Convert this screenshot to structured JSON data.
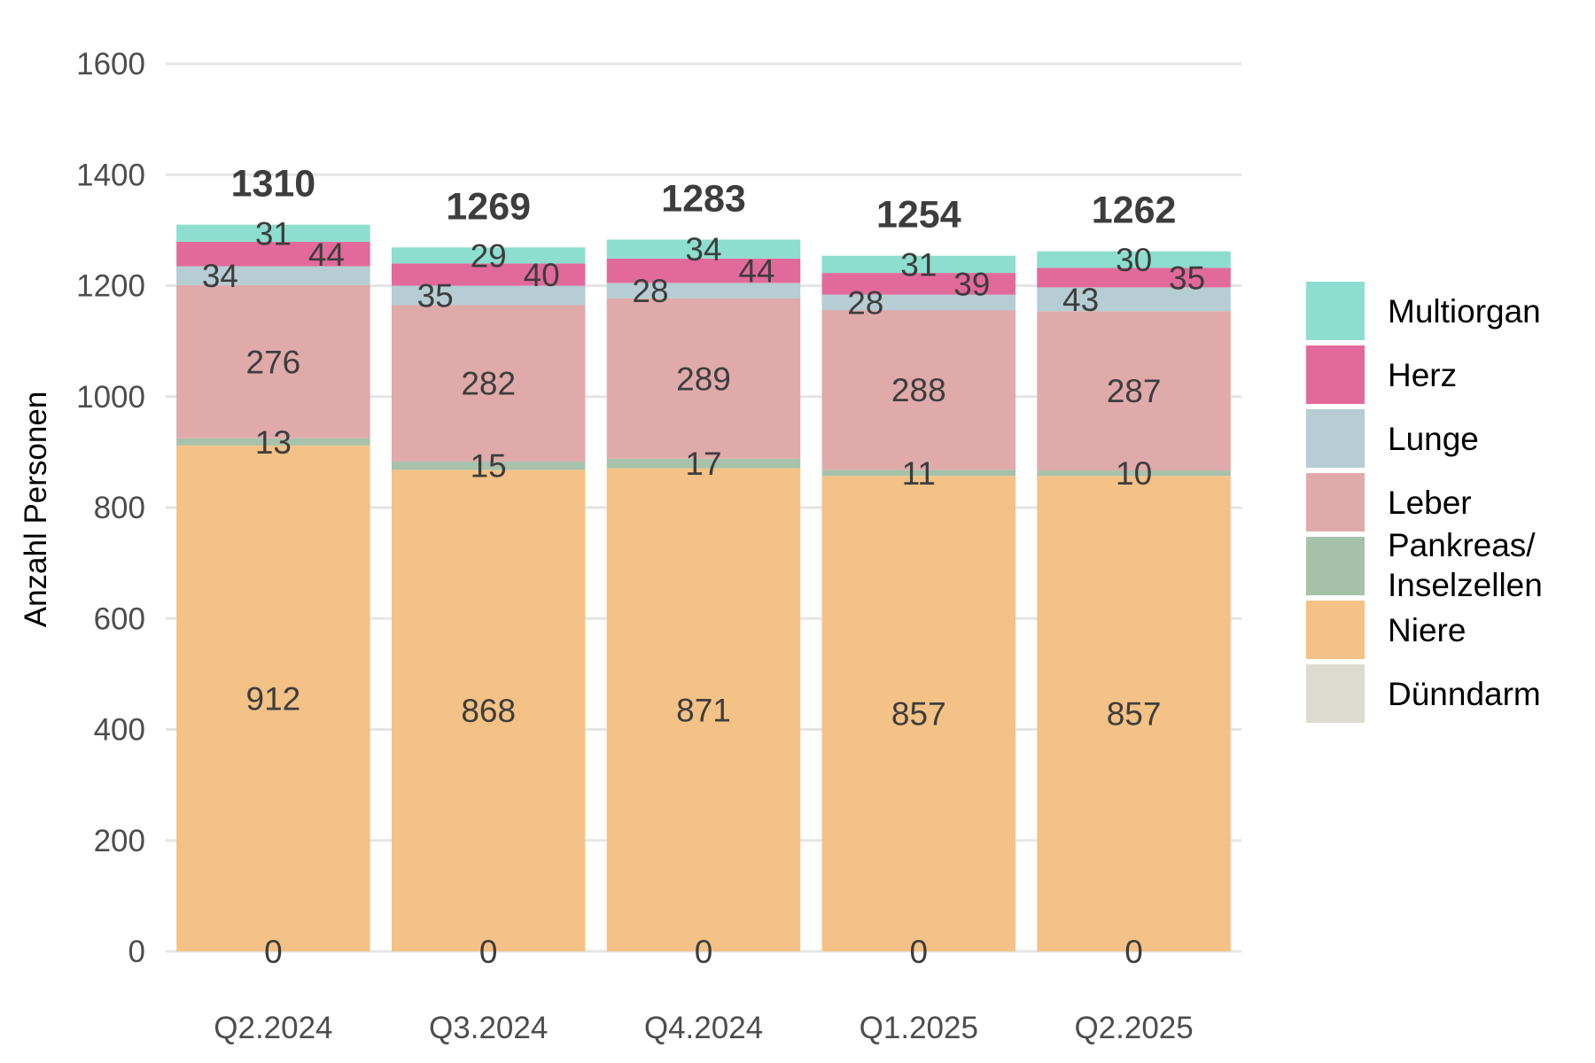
{
  "chart_data": {
    "type": "bar",
    "stacked": true,
    "ylabel": "Anzahl Personen",
    "ylim": [
      0,
      1600
    ],
    "yticks": [
      0,
      200,
      400,
      600,
      800,
      1000,
      1200,
      1400,
      1600
    ],
    "grid": true,
    "legend_position": "right",
    "categories": [
      "Q2.2024",
      "Q3.2024",
      "Q4.2024",
      "Q1.2025",
      "Q2.2025"
    ],
    "totals": [
      1310,
      1269,
      1283,
      1254,
      1262
    ],
    "series": [
      {
        "name": "Dünndarm",
        "color": "#dddbcf",
        "values": [
          0,
          0,
          0,
          0,
          0
        ]
      },
      {
        "name": "Niere",
        "color": "#f4c286",
        "values": [
          912,
          868,
          871,
          857,
          857
        ]
      },
      {
        "name": "Pankreas/\nInselzellen",
        "color": "#a7c2aa",
        "values": [
          13,
          15,
          17,
          11,
          10
        ]
      },
      {
        "name": "Leber",
        "color": "#e0aaaa",
        "values": [
          276,
          282,
          289,
          288,
          287
        ]
      },
      {
        "name": "Lunge",
        "color": "#b5cdd3",
        "values": [
          34,
          35,
          28,
          28,
          43
        ]
      },
      {
        "name": "Herz",
        "color": "#e26a9b",
        "values": [
          44,
          40,
          44,
          39,
          35
        ]
      },
      {
        "name": "Multiorgan",
        "color": "#8ddece",
        "values": [
          31,
          29,
          34,
          31,
          30
        ]
      }
    ]
  }
}
